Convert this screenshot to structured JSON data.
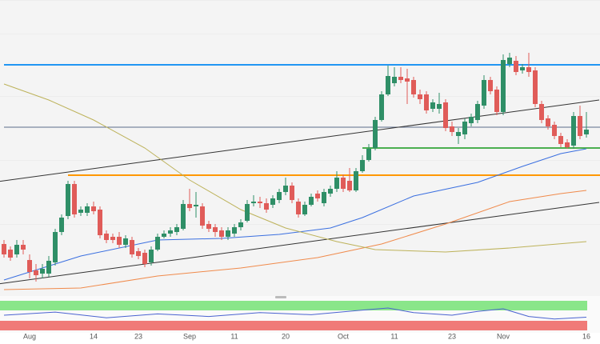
{
  "chart_data": {
    "type": "candlestick",
    "categories": [
      null,
      null,
      null,
      null,
      "Aug",
      null,
      null,
      null,
      null,
      null,
      null,
      null,
      null,
      null,
      "14",
      null,
      null,
      null,
      null,
      null,
      null,
      "23",
      null,
      null,
      null,
      null,
      null,
      null,
      null,
      "Sep",
      null,
      null,
      null,
      null,
      null,
      null,
      "11",
      null,
      null,
      null,
      null,
      null,
      null,
      null,
      "20",
      null,
      null,
      null,
      null,
      null,
      null,
      null,
      null,
      "Oct",
      null,
      null,
      null,
      null,
      null,
      null,
      null,
      "11",
      null,
      null,
      null,
      null,
      null,
      null,
      null,
      null,
      "23",
      null,
      null,
      null,
      null,
      null,
      null,
      null,
      "Nov",
      null,
      null,
      null,
      null,
      null,
      null,
      null,
      null,
      null,
      null,
      null,
      null,
      "16"
    ],
    "open": [
      65,
      58,
      52,
      64,
      45,
      32,
      28,
      28,
      42,
      80,
      100,
      140,
      104,
      104,
      112,
      108,
      78,
      74,
      74,
      64,
      70,
      56,
      54,
      42,
      58,
      74,
      78,
      80,
      84,
      115,
      112,
      112,
      90,
      86,
      82,
      74,
      78,
      86,
      94,
      116,
      118,
      116,
      114,
      120,
      130,
      138,
      118,
      102,
      114,
      128,
      116,
      128,
      134,
      148,
      144,
      132,
      156,
      170,
      185,
      220,
      252,
      266,
      274,
      272,
      270,
      252,
      252,
      234,
      234,
      242,
      212,
      200,
      202,
      216,
      220,
      238,
      270,
      258,
      230,
      290,
      294,
      282,
      286,
      282,
      240,
      222,
      214,
      200,
      192,
      188,
      225,
      202
    ],
    "high": [
      70,
      62,
      70,
      70,
      52,
      40,
      40,
      50,
      84,
      102,
      144,
      144,
      112,
      116,
      118,
      112,
      82,
      78,
      80,
      76,
      74,
      60,
      58,
      62,
      78,
      82,
      86,
      90,
      120,
      134,
      130,
      116,
      94,
      90,
      86,
      86,
      90,
      96,
      120,
      126,
      124,
      122,
      126,
      134,
      148,
      142,
      122,
      118,
      128,
      132,
      134,
      138,
      156,
      152,
      160,
      160,
      176,
      190,
      224,
      256,
      288,
      286,
      286,
      284,
      274,
      258,
      256,
      246,
      254,
      246,
      218,
      210,
      222,
      228,
      244,
      276,
      274,
      262,
      302,
      304,
      300,
      290,
      304,
      286,
      244,
      226,
      218,
      204,
      196,
      230,
      238,
      230
    ],
    "low": [
      48,
      44,
      48,
      52,
      22,
      18,
      22,
      24,
      38,
      76,
      96,
      98,
      100,
      100,
      102,
      72,
      66,
      66,
      60,
      60,
      48,
      46,
      36,
      38,
      56,
      72,
      74,
      76,
      82,
      106,
      98,
      84,
      80,
      74,
      70,
      70,
      74,
      82,
      92,
      112,
      110,
      104,
      110,
      116,
      126,
      116,
      98,
      100,
      112,
      118,
      112,
      124,
      130,
      130,
      130,
      130,
      154,
      168,
      182,
      218,
      250,
      262,
      266,
      240,
      248,
      240,
      228,
      230,
      228,
      206,
      200,
      190,
      196,
      212,
      216,
      234,
      252,
      226,
      226,
      286,
      276,
      278,
      274,
      236,
      216,
      208,
      196,
      186,
      184,
      184,
      196,
      198
    ],
    "close": [
      52,
      48,
      64,
      58,
      30,
      26,
      34,
      44,
      80,
      98,
      140,
      102,
      108,
      112,
      106,
      76,
      70,
      70,
      64,
      72,
      52,
      50,
      40,
      58,
      74,
      78,
      82,
      86,
      115,
      110,
      114,
      88,
      84,
      80,
      74,
      82,
      86,
      92,
      115,
      118,
      116,
      108,
      122,
      130,
      138,
      120,
      102,
      114,
      124,
      122,
      130,
      134,
      148,
      134,
      132,
      156,
      170,
      184,
      220,
      252,
      275,
      274,
      270,
      268,
      252,
      246,
      232,
      242,
      240,
      210,
      205,
      205,
      218,
      224,
      240,
      270,
      256,
      230,
      295,
      298,
      280,
      286,
      280,
      240,
      220,
      212,
      200,
      190,
      186,
      225,
      200,
      208
    ],
    "up_color": "#2f8f67",
    "down_color": "#e05c59",
    "ylim": [
      0,
      370
    ],
    "levels": [
      {
        "value": 289,
        "color": "#2196f3",
        "start": 0
      },
      {
        "value": 211,
        "color": "#5c6b8a",
        "start": 0
      },
      {
        "value": 185,
        "color": "#4caf50",
        "start": 56
      },
      {
        "value": 151,
        "color": "#ff9800",
        "start": 10
      }
    ],
    "trendlines": [
      {
        "x": [
          -1,
          93
        ],
        "values": [
          143,
          245
        ],
        "color": "#333333"
      },
      {
        "x": [
          -1,
          93
        ],
        "values": [
          15,
          117
        ],
        "color": "#333333"
      }
    ],
    "averages": [
      {
        "color": "#3a6fe0",
        "x": [
          0,
          4,
          12,
          24,
          34,
          43,
          51,
          56,
          64,
          74,
          81,
          87,
          91
        ],
        "values": [
          20,
          30,
          50,
          70,
          72,
          77,
          85,
          98,
          125,
          142,
          162,
          178,
          184
        ]
      },
      {
        "color": "#f08a4b",
        "x": [
          0,
          12,
          24,
          37,
          49,
          59,
          69,
          79,
          87,
          91
        ],
        "values": [
          8,
          10,
          25,
          35,
          48,
          65,
          90,
          118,
          128,
          132
        ]
      },
      {
        "color": "#bdb25a",
        "x": [
          0,
          7,
          14,
          22,
          29,
          37,
          44,
          52,
          58,
          69,
          79,
          91
        ],
        "values": [
          265,
          245,
          220,
          185,
          145,
          108,
          85,
          68,
          58,
          55,
          60,
          68
        ]
      }
    ],
    "indicator": {
      "color": "#4a63d0",
      "ylim": [
        0,
        100
      ],
      "x": [
        0,
        8,
        16,
        24,
        32,
        40,
        48,
        56,
        60,
        64,
        70,
        74,
        78,
        82,
        86,
        91
      ],
      "values": [
        50,
        62,
        40,
        55,
        45,
        60,
        52,
        70,
        78,
        60,
        50,
        65,
        75,
        45,
        35,
        42
      ]
    }
  }
}
